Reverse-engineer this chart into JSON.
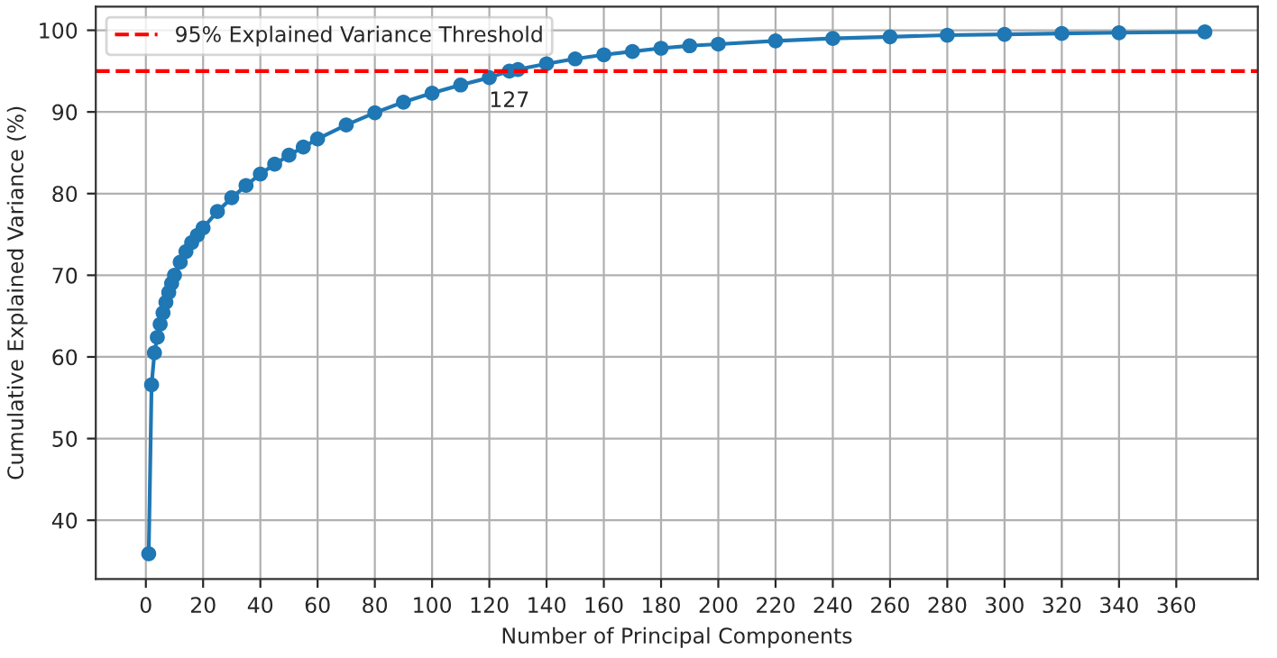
{
  "chart_data": {
    "type": "line",
    "xlabel": "Number of Principal Components",
    "ylabel": "Cumulative Explained Variance (%)",
    "x": [
      1,
      2,
      3,
      4,
      5,
      6,
      7,
      8,
      9,
      10,
      12,
      14,
      16,
      18,
      20,
      25,
      30,
      35,
      40,
      45,
      50,
      55,
      60,
      70,
      80,
      90,
      100,
      110,
      120,
      127,
      130,
      140,
      150,
      160,
      170,
      180,
      190,
      200,
      220,
      240,
      260,
      280,
      300,
      320,
      340,
      370
    ],
    "series": [
      {
        "color": "#1f77b4",
        "values": [
          35.9,
          56.6,
          60.5,
          62.4,
          64.0,
          65.4,
          66.7,
          67.9,
          69.0,
          70.0,
          71.6,
          72.9,
          74.0,
          74.9,
          75.8,
          77.8,
          79.5,
          81.0,
          82.4,
          83.6,
          84.7,
          85.7,
          86.7,
          88.4,
          89.9,
          91.2,
          92.3,
          93.3,
          94.2,
          95.0,
          95.2,
          95.9,
          96.5,
          97.0,
          97.4,
          97.8,
          98.1,
          98.3,
          98.7,
          99.0,
          99.2,
          99.4,
          99.5,
          99.6,
          99.7,
          99.8
        ]
      }
    ],
    "xlim": [
      -17.5,
      388.5
    ],
    "ylim": [
      32.8,
      102.9
    ],
    "xticks": [
      0,
      20,
      40,
      60,
      80,
      100,
      120,
      140,
      160,
      180,
      200,
      220,
      240,
      260,
      280,
      300,
      320,
      340,
      360
    ],
    "yticks": [
      40,
      50,
      60,
      70,
      80,
      90,
      100
    ],
    "ref_lines": [
      {
        "axis": "y",
        "value": 95,
        "label": "95% Explained Variance Threshold",
        "color": "#ff0000",
        "line_style": "dashed"
      }
    ],
    "annotations": [
      {
        "text": "127",
        "x": 127,
        "y": 95
      }
    ],
    "marker": "circle",
    "line_style": "solid",
    "grid": true,
    "legend": "top left"
  }
}
